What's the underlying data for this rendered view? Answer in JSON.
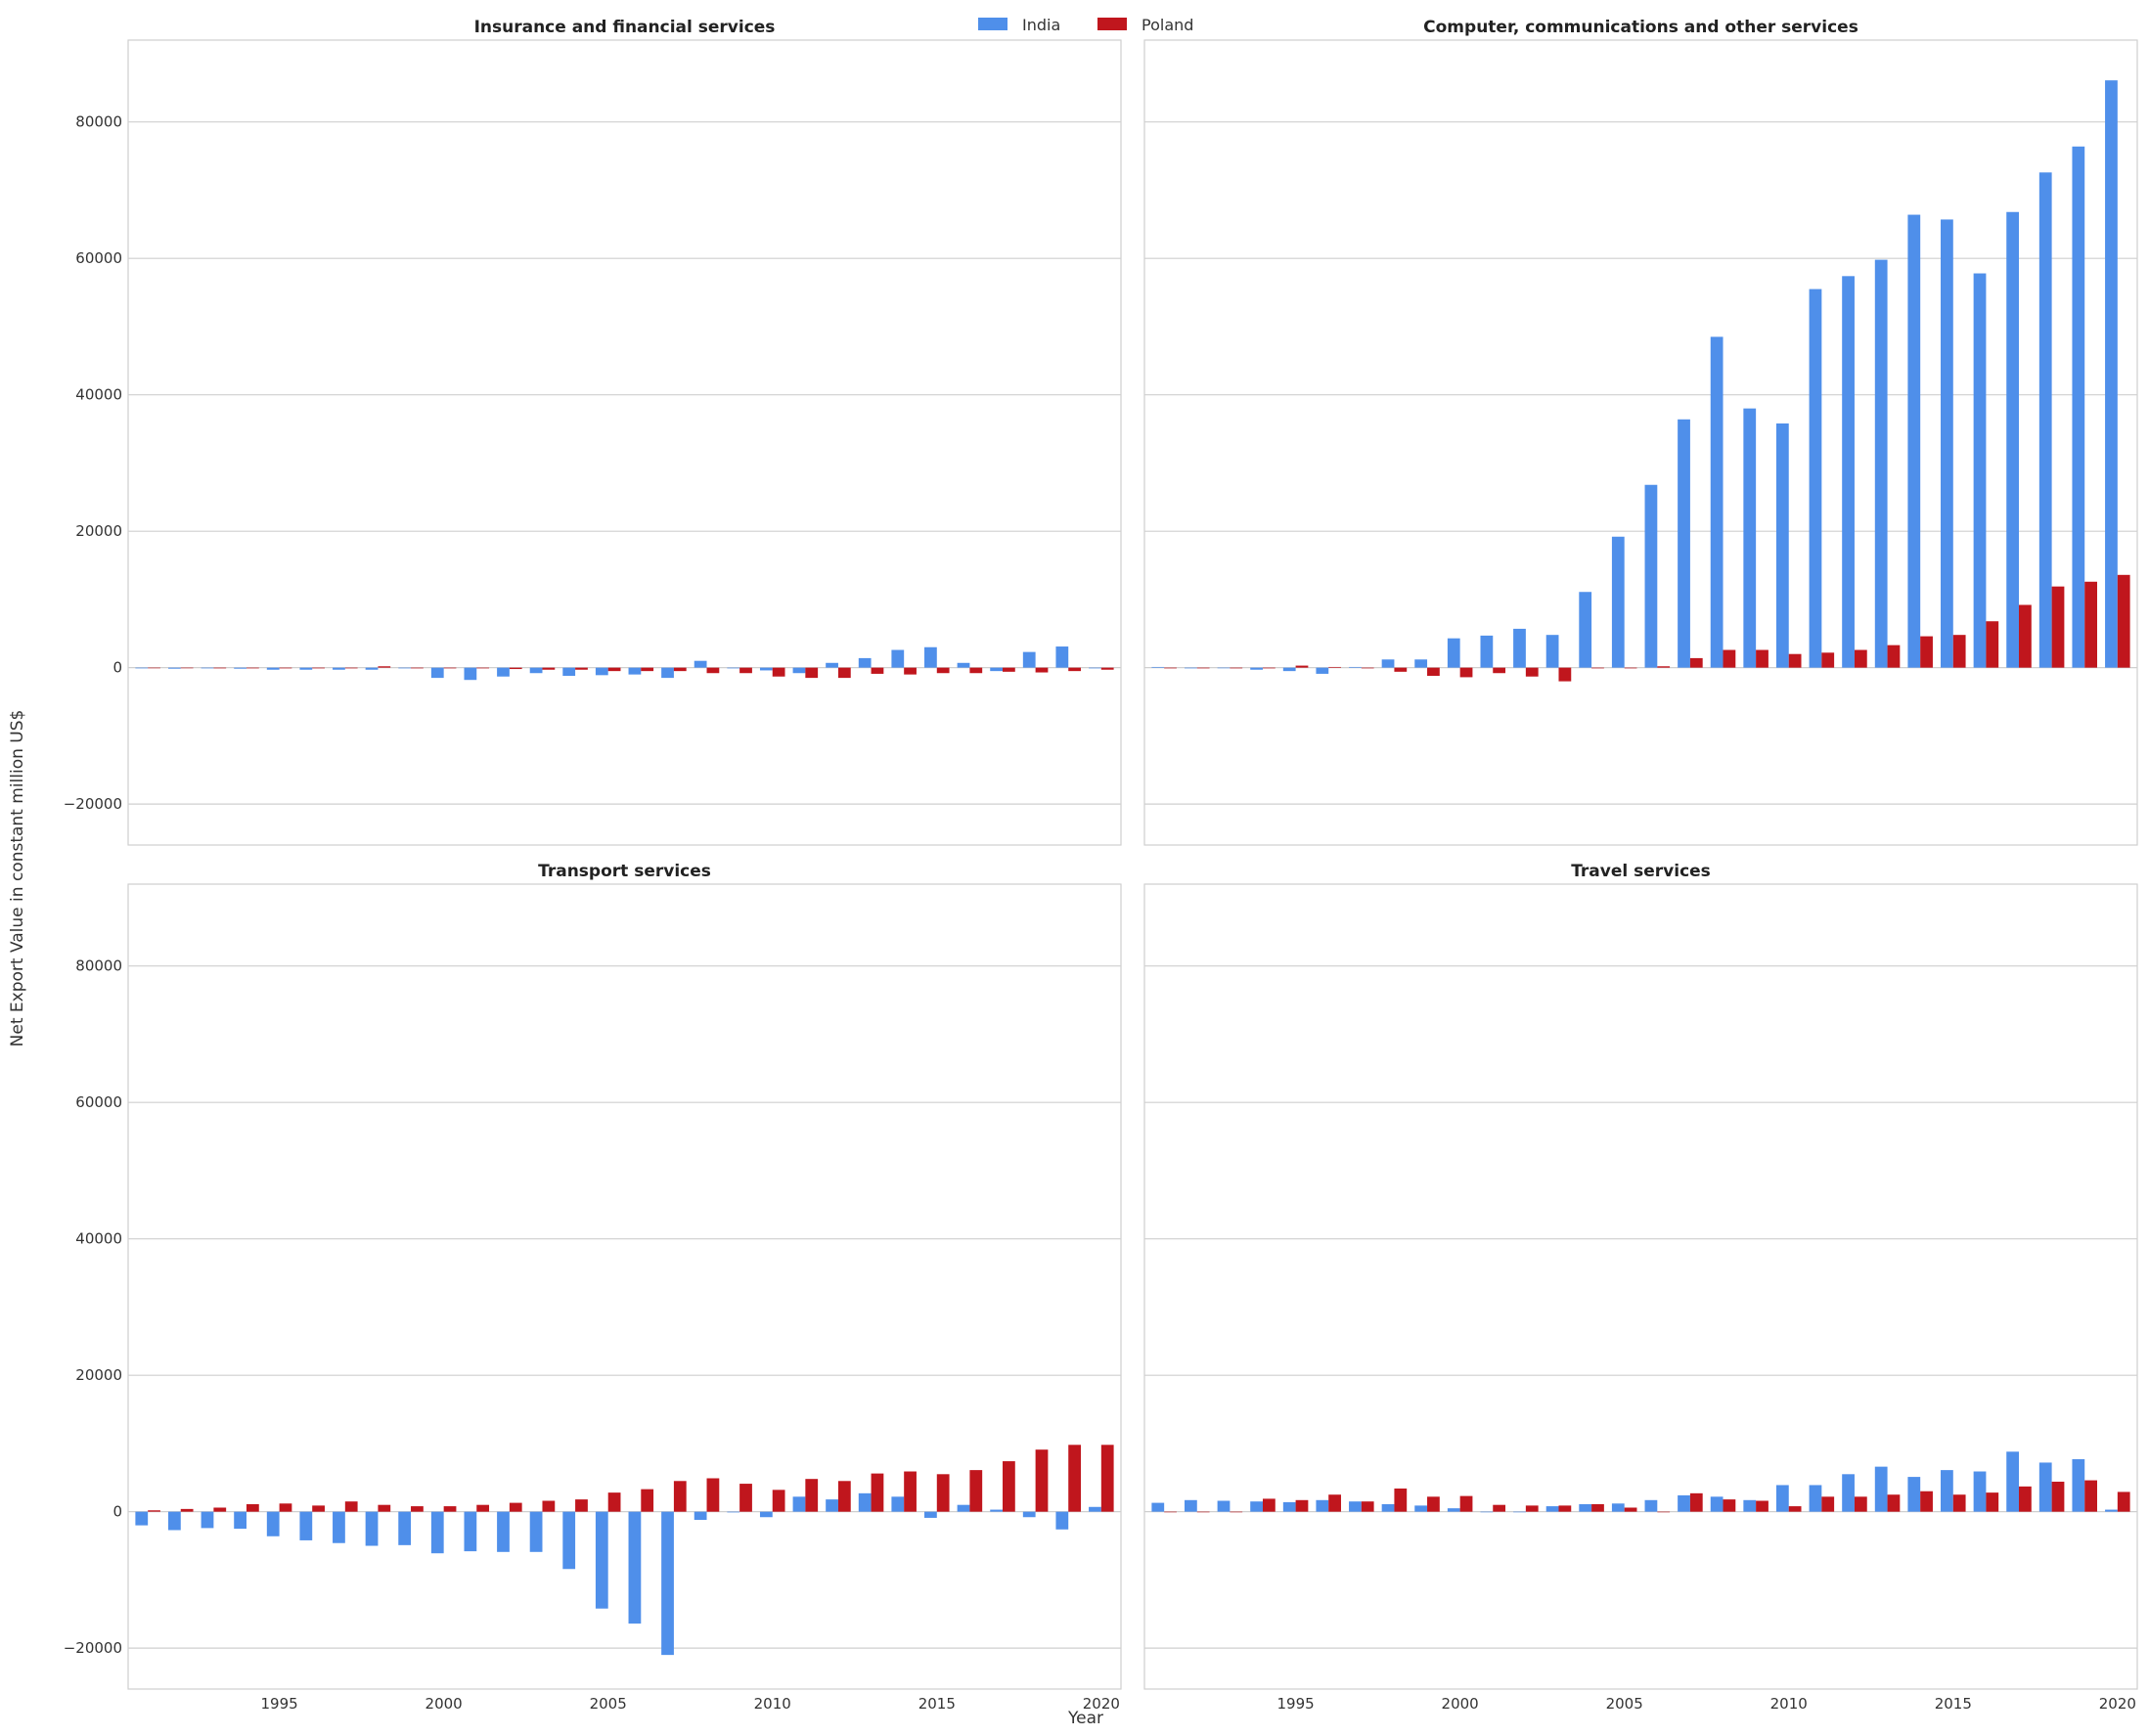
{
  "legend": [
    {
      "name": "India",
      "color": "#4f8fea"
    },
    {
      "name": "Poland",
      "color": "#c0161d"
    }
  ],
  "axis": {
    "xlabel": "Year",
    "ylabel": "Net Export Value in constant million US$",
    "yticks": [
      "80000",
      "60000",
      "40000",
      "20000",
      "0",
      "−20000"
    ],
    "xticks": [
      "1995",
      "2000",
      "2005",
      "2010",
      "2015",
      "2020"
    ]
  },
  "chart_data": [
    {
      "type": "bar",
      "title": "Insurance and financial services",
      "x": [
        1991,
        1992,
        1993,
        1994,
        1995,
        1996,
        1997,
        1998,
        1999,
        2000,
        2001,
        2002,
        2003,
        2004,
        2005,
        2006,
        2007,
        2008,
        2009,
        2010,
        2011,
        2012,
        2013,
        2014,
        2015,
        2016,
        2017,
        2018,
        2019,
        2020
      ],
      "series": [
        {
          "name": "India",
          "values": [
            -100,
            -150,
            -100,
            -150,
            -300,
            -300,
            -300,
            -300,
            -100,
            -1500,
            -1800,
            -1300,
            -800,
            -1200,
            -1100,
            -1000,
            -1500,
            1000,
            -100,
            -400,
            -800,
            700,
            1400,
            2600,
            3000,
            700,
            -500,
            2300,
            3100,
            -100
          ]
        },
        {
          "name": "Poland",
          "values": [
            -50,
            -80,
            -100,
            -100,
            -100,
            -100,
            -100,
            200,
            -100,
            -100,
            -100,
            -200,
            -300,
            -300,
            -500,
            -500,
            -500,
            -800,
            -800,
            -1300,
            -1500,
            -1500,
            -900,
            -1000,
            -800,
            -800,
            -600,
            -700,
            -500,
            -300
          ]
        }
      ],
      "ylim": [
        -26000,
        92000
      ]
    },
    {
      "type": "bar",
      "title": "Computer, communications and other services",
      "x": [
        1991,
        1992,
        1993,
        1994,
        1995,
        1996,
        1997,
        1998,
        1999,
        2000,
        2001,
        2002,
        2003,
        2004,
        2005,
        2006,
        2007,
        2008,
        2009,
        2010,
        2011,
        2012,
        2013,
        2014,
        2015,
        2016,
        2017,
        2018,
        2019,
        2020
      ],
      "series": [
        {
          "name": "India",
          "values": [
            100,
            -100,
            0,
            -300,
            -500,
            -900,
            100,
            1200,
            1200,
            4300,
            4700,
            5700,
            4800,
            11100,
            19200,
            26800,
            36400,
            48500,
            38000,
            35800,
            55500,
            57400,
            59800,
            66400,
            65700,
            57800,
            66800,
            72600,
            76400,
            86100
          ]
        },
        {
          "name": "Poland",
          "values": [
            -100,
            -100,
            -100,
            -100,
            300,
            100,
            -100,
            -600,
            -1200,
            -1400,
            -800,
            -1300,
            -2000,
            -100,
            -100,
            200,
            1400,
            2600,
            2600,
            2000,
            2200,
            2600,
            3300,
            4600,
            4800,
            6800,
            9200,
            11900,
            12600,
            13600
          ]
        }
      ],
      "ylim": [
        -26000,
        92000
      ]
    },
    {
      "type": "bar",
      "title": "Transport services",
      "x": [
        1991,
        1992,
        1993,
        1994,
        1995,
        1996,
        1997,
        1998,
        1999,
        2000,
        2001,
        2002,
        2003,
        2004,
        2005,
        2006,
        2007,
        2008,
        2009,
        2010,
        2011,
        2012,
        2013,
        2014,
        2015,
        2016,
        2017,
        2018,
        2019,
        2020
      ],
      "series": [
        {
          "name": "India",
          "values": [
            -2000,
            -2700,
            -2400,
            -2500,
            -3600,
            -4200,
            -4600,
            -5000,
            -4900,
            -6100,
            -5800,
            -5900,
            -5900,
            -8400,
            -14200,
            -16400,
            -21000,
            -1200,
            -100,
            -800,
            2200,
            1800,
            2700,
            2200,
            -900,
            1000,
            300,
            -800,
            -2600,
            700
          ]
        },
        {
          "name": "Poland",
          "values": [
            200,
            400,
            600,
            1100,
            1200,
            900,
            1500,
            1000,
            800,
            800,
            1000,
            1300,
            1600,
            1800,
            2800,
            3300,
            4500,
            4900,
            4100,
            3200,
            4800,
            4500,
            5600,
            5900,
            5500,
            6100,
            7400,
            9100,
            9800,
            9800
          ]
        }
      ],
      "ylim": [
        -26000,
        92000
      ]
    },
    {
      "type": "bar",
      "title": "Travel services",
      "x": [
        1991,
        1992,
        1993,
        1994,
        1995,
        1996,
        1997,
        1998,
        1999,
        2000,
        2001,
        2002,
        2003,
        2004,
        2005,
        2006,
        2007,
        2008,
        2009,
        2010,
        2011,
        2012,
        2013,
        2014,
        2015,
        2016,
        2017,
        2018,
        2019,
        2020
      ],
      "series": [
        {
          "name": "India",
          "values": [
            1300,
            1700,
            1600,
            1500,
            1400,
            1700,
            1500,
            1100,
            900,
            500,
            0,
            0,
            800,
            1100,
            1200,
            1700,
            2400,
            2200,
            1700,
            3900,
            3900,
            5500,
            6600,
            5100,
            6100,
            5900,
            8800,
            7200,
            7700,
            300
          ]
        },
        {
          "name": "Poland",
          "values": [
            0,
            0,
            0,
            1900,
            1700,
            2500,
            1500,
            3400,
            2200,
            2300,
            1000,
            900,
            900,
            1100,
            600,
            0,
            2700,
            1800,
            1600,
            800,
            2200,
            2200,
            2500,
            3000,
            2500,
            2800,
            3700,
            4400,
            4600,
            2900
          ]
        }
      ],
      "ylim": [
        -26000,
        92000
      ]
    }
  ]
}
